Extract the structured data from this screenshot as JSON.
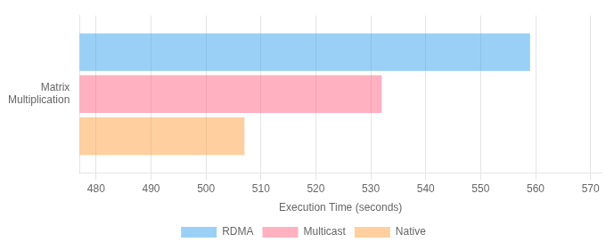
{
  "chart_data": {
    "type": "bar",
    "orientation": "horizontal",
    "categories": [
      "Matrix\nMultiplication"
    ],
    "series": [
      {
        "name": "RDMA",
        "values": [
          559
        ]
      },
      {
        "name": "Multicast",
        "values": [
          532
        ]
      },
      {
        "name": "Native",
        "values": [
          507
        ]
      }
    ],
    "xlabel": "Execution Time (seconds)",
    "xlim": [
      477,
      572
    ],
    "xticks": [
      480,
      490,
      500,
      510,
      520,
      530,
      540,
      550,
      560,
      570
    ],
    "grid": true,
    "legend": "bottom"
  }
}
